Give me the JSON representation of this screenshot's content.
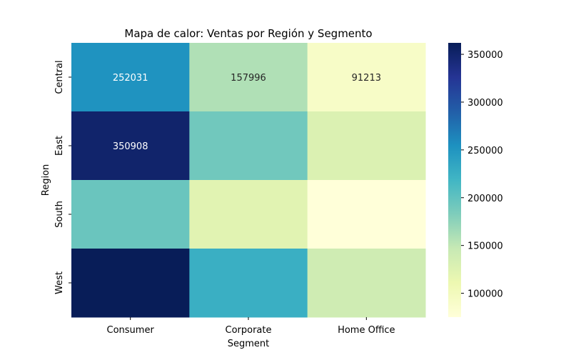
{
  "chart_data": {
    "type": "heatmap",
    "title": "Mapa de calor: Ventas por Región y Segmento",
    "xlabel": "Segment",
    "ylabel": "Region",
    "x_categories": [
      "Consumer",
      "Corporate",
      "Home Office"
    ],
    "y_categories": [
      "Central",
      "East",
      "South",
      "West"
    ],
    "values": [
      [
        252031,
        157996,
        91213
      ],
      [
        350908,
        191000,
        128000
      ],
      [
        195000,
        122000,
        75000
      ],
      [
        362000,
        225000,
        139000
      ]
    ],
    "annotations": [
      [
        "252031",
        "157996",
        "91213"
      ],
      [
        "350908",
        "",
        ""
      ],
      [
        "",
        "",
        ""
      ],
      [
        "",
        "",
        ""
      ]
    ],
    "colormap": "YlGnBu",
    "color_range": [
      75000,
      362000
    ],
    "colorbar_ticks": [
      100000,
      150000,
      200000,
      250000,
      300000,
      350000
    ],
    "colorbar_tick_labels": [
      "100000",
      "150000",
      "200000",
      "250000",
      "300000",
      "350000"
    ],
    "colors": {
      "ylgnbu": [
        "#ffffd9",
        "#edf8b1",
        "#c7e9b4",
        "#7fcdbb",
        "#41b6c4",
        "#1d91c0",
        "#225ea8",
        "#253494",
        "#081d58"
      ],
      "axis": "#000000",
      "text_dark": "#262626",
      "text_light": "#ffffff"
    }
  }
}
